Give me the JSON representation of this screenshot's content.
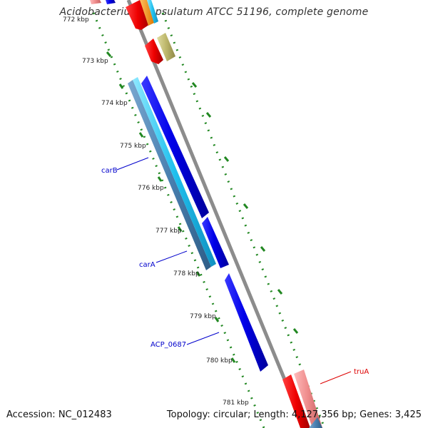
{
  "header": {
    "title": "Acidobacterium capsulatum ATCC 51196, complete genome"
  },
  "footer": {
    "accession": "Accession: NC_012483",
    "topology": "Topology: circular; Length: 4,127,356 bp; Genes: 3,425"
  },
  "scale": {
    "ticks": [
      "773 kbp",
      "774 kbp",
      "775 kbp",
      "776 kbp",
      "777 kbp",
      "778 kbp",
      "779 kbp",
      "780 kbp",
      "781 kbp"
    ],
    "partial_top_tick": "772 kbp"
  },
  "gene_labels": [
    {
      "name": "carB",
      "color": "#0000cc"
    },
    {
      "name": "carA",
      "color": "#0000cc"
    },
    {
      "name": "ACP_0687",
      "color": "#0000cc"
    },
    {
      "name": "truA",
      "color": "#dd0000"
    }
  ],
  "colors": {
    "backbone": "#8c8c8c",
    "gene_blue": "#1010ee",
    "gene_cyan": "#26c6f0",
    "gene_steel": "#4e86b4",
    "gene_red": "#ee0000",
    "gene_pink": "#ee8888",
    "gene_olive": "#bdb76b",
    "gene_orange": "#ff9900",
    "gc_dots": "#228822"
  }
}
